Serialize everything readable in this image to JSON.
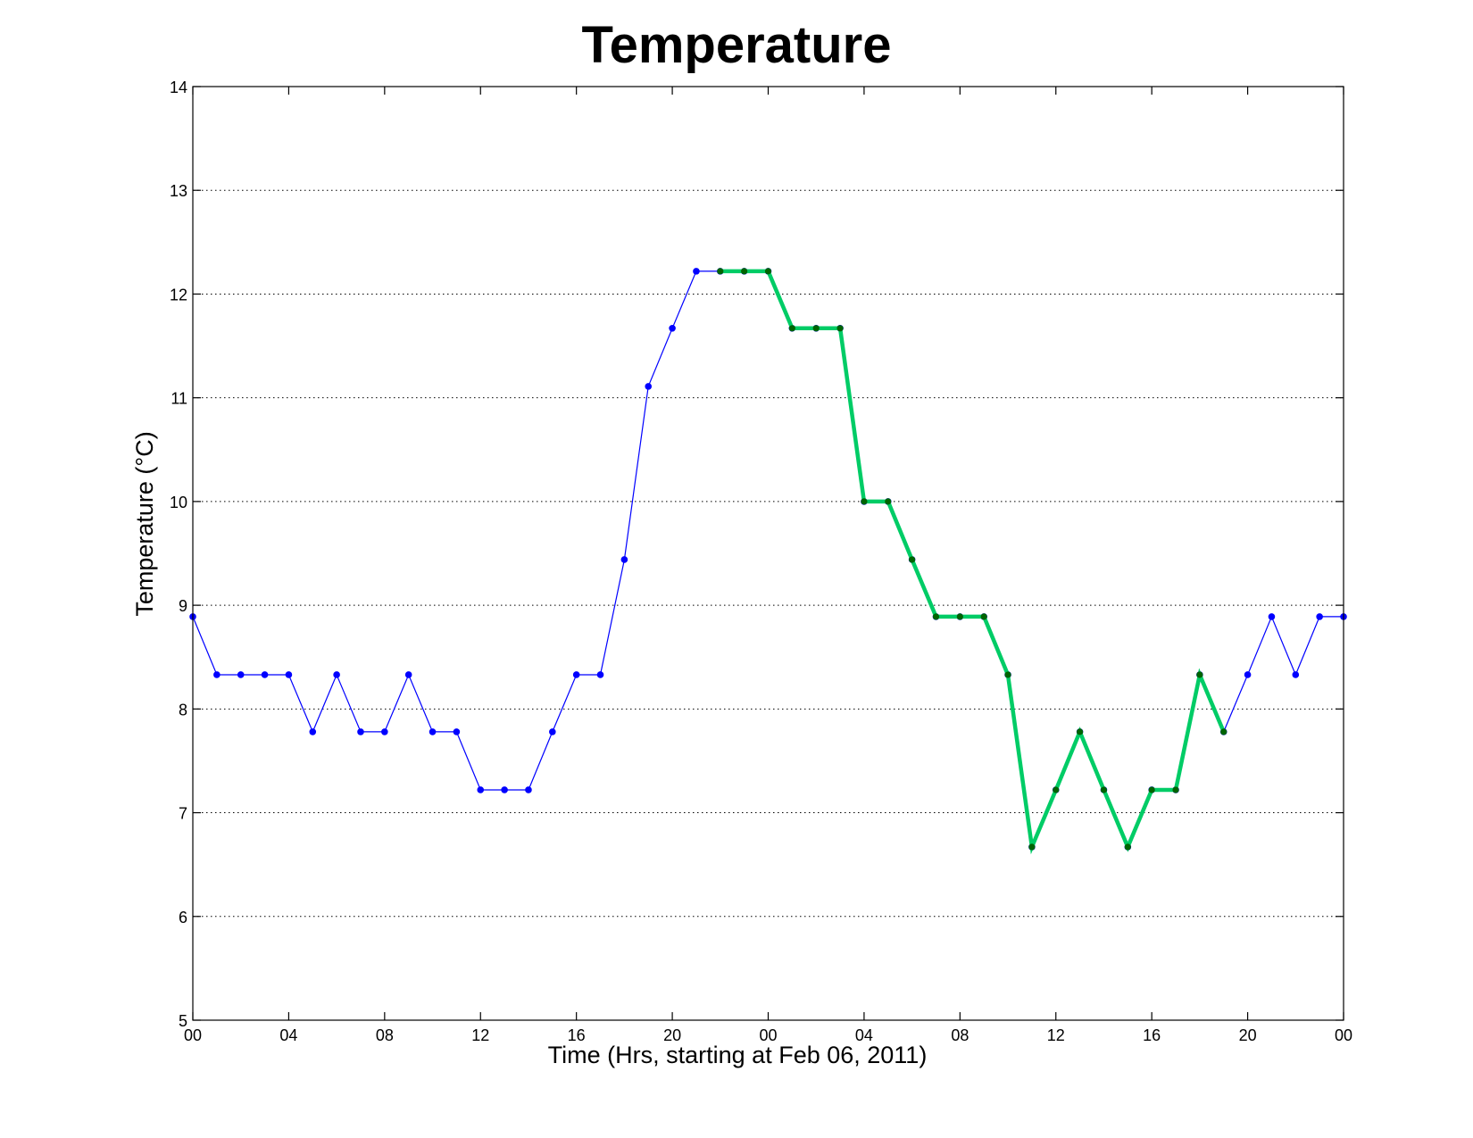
{
  "chart_data": {
    "type": "line",
    "title": "Temperature",
    "xlabel": "Time (Hrs, starting at Feb 06, 2011)",
    "ylabel": "Temperature (°C)",
    "xlim": [
      0,
      48
    ],
    "ylim": [
      5,
      14
    ],
    "grid": "horizontal dotted",
    "y_ticks": [
      5,
      6,
      7,
      8,
      9,
      10,
      11,
      12,
      13,
      14
    ],
    "x_ticks": [
      0,
      4,
      8,
      12,
      16,
      20,
      24,
      28,
      32,
      36,
      40,
      44,
      48
    ],
    "x_tick_labels": [
      "00",
      "04",
      "08",
      "12",
      "16",
      "20",
      "00",
      "04",
      "08",
      "12",
      "16",
      "20",
      "00"
    ],
    "series": [
      {
        "color": "#0000ff",
        "style": "thin line with dot markers",
        "x": [
          0,
          1,
          2,
          3,
          4,
          5,
          6,
          7,
          8,
          9,
          10,
          11,
          12,
          13,
          14,
          15,
          16,
          17,
          18,
          19,
          20,
          21,
          22,
          23,
          24,
          25,
          26,
          27,
          28,
          29,
          30,
          31,
          32,
          33,
          34,
          35,
          36,
          37,
          38,
          39,
          40,
          41,
          42,
          43,
          44,
          45,
          46,
          47,
          48
        ],
        "y": [
          8.89,
          8.33,
          8.33,
          8.33,
          8.33,
          7.78,
          8.33,
          7.78,
          7.78,
          8.33,
          7.78,
          7.78,
          7.22,
          7.22,
          7.22,
          7.78,
          8.33,
          8.33,
          9.44,
          11.11,
          11.67,
          12.22,
          12.22,
          12.22,
          12.22,
          11.67,
          11.67,
          11.67,
          10.0,
          10.0,
          9.44,
          8.89,
          8.89,
          8.89,
          8.33,
          6.67,
          7.22,
          7.78,
          7.22,
          6.67,
          7.22,
          7.22,
          8.33,
          7.78,
          8.33,
          8.89,
          8.33,
          8.89,
          8.89
        ]
      },
      {
        "color": "#00cc66",
        "marker_color": "#006400",
        "style": "thick line with dot markers",
        "x": [
          22,
          23,
          24,
          25,
          26,
          27,
          28,
          29,
          30,
          31,
          32,
          33,
          34,
          35,
          36,
          37,
          38,
          39,
          40,
          41,
          42,
          43
        ],
        "y": [
          12.22,
          12.22,
          12.22,
          11.67,
          11.67,
          11.67,
          10.0,
          10.0,
          9.44,
          8.89,
          8.89,
          8.89,
          8.33,
          6.67,
          7.22,
          7.78,
          7.22,
          6.67,
          7.22,
          7.22,
          8.33,
          7.78
        ]
      }
    ]
  }
}
